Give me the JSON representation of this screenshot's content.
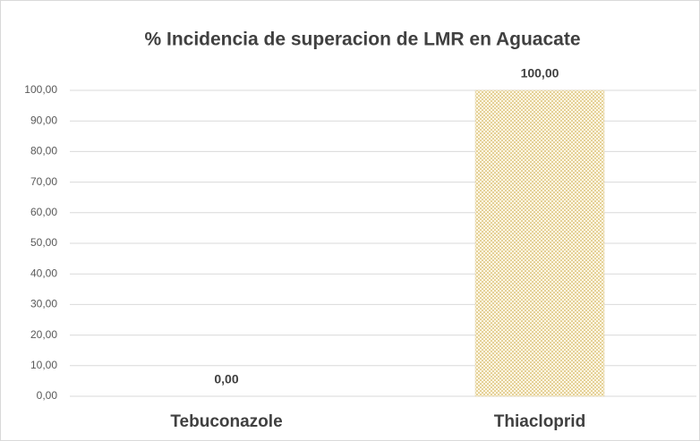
{
  "chart_data": {
    "type": "bar",
    "title": "% Incidencia de superacion de LMR en Aguacate",
    "categories": [
      "Tebuconazole",
      "Thiacloprid"
    ],
    "values": [
      0,
      100
    ],
    "value_labels": [
      "0,00",
      "100,00"
    ],
    "color": "#c9a43c",
    "ylim": [
      0,
      100
    ],
    "yticks": [
      {
        "value": 0,
        "label": "0,00"
      },
      {
        "value": 10,
        "label": "10,00"
      },
      {
        "value": 20,
        "label": "20,00"
      },
      {
        "value": 30,
        "label": "30,00"
      },
      {
        "value": 40,
        "label": "40,00"
      },
      {
        "value": 50,
        "label": "50,00"
      },
      {
        "value": 60,
        "label": "60,00"
      },
      {
        "value": 70,
        "label": "70,00"
      },
      {
        "value": 80,
        "label": "80,00"
      },
      {
        "value": 90,
        "label": "90,00"
      },
      {
        "value": 100,
        "label": "100,00"
      }
    ],
    "grid": true
  }
}
